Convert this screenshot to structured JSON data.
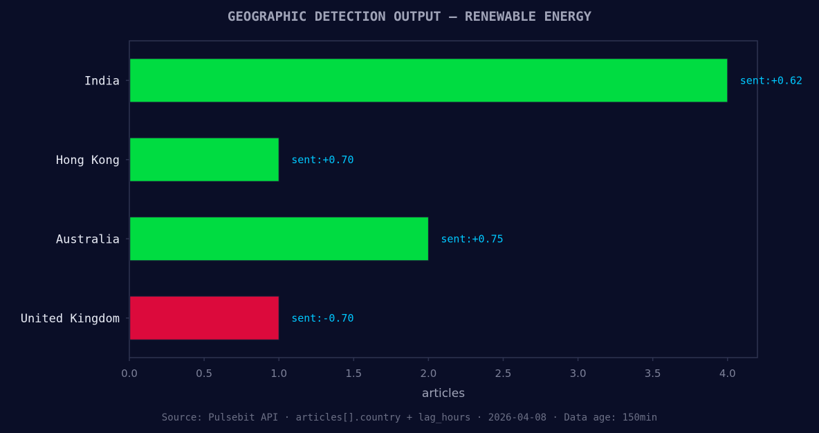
{
  "chart_data": {
    "type": "bar",
    "orientation": "horizontal",
    "title": "GEOGRAPHIC DETECTION OUTPUT — RENEWABLE ENERGY",
    "xlabel": "articles",
    "ylabel": "",
    "categories": [
      "India",
      "Hong Kong",
      "Australia",
      "United Kingdom"
    ],
    "values": [
      4,
      1,
      2,
      1
    ],
    "annotations": [
      "sent:+0.62",
      "sent:+0.70",
      "sent:+0.75",
      "sent:-0.70"
    ],
    "bar_colors": [
      "#00dc41",
      "#00dc41",
      "#00dc41",
      "#dc0a3c"
    ],
    "xlim": [
      0,
      4.2
    ],
    "xticks": [
      0.0,
      0.5,
      1.0,
      1.5,
      2.0,
      2.5,
      3.0,
      3.5,
      4.0
    ],
    "xtick_labels": [
      "0.0",
      "0.5",
      "1.0",
      "1.5",
      "2.0",
      "2.5",
      "3.0",
      "3.5",
      "4.0"
    ],
    "grid": false,
    "source": "Source: Pulsebit API · articles[].country + lag_hours · 2026-04-08 · Data age: 150min"
  },
  "colors": {
    "background": "#0a0e27",
    "axis": "#2e3350",
    "title": "#a0a4b8",
    "category_text": "#e8ebf5",
    "annotation": "#00c8ff",
    "tick_text": "#7d8199",
    "xlabel_text": "#a0a4b8",
    "source_text": "#6b6f85"
  }
}
